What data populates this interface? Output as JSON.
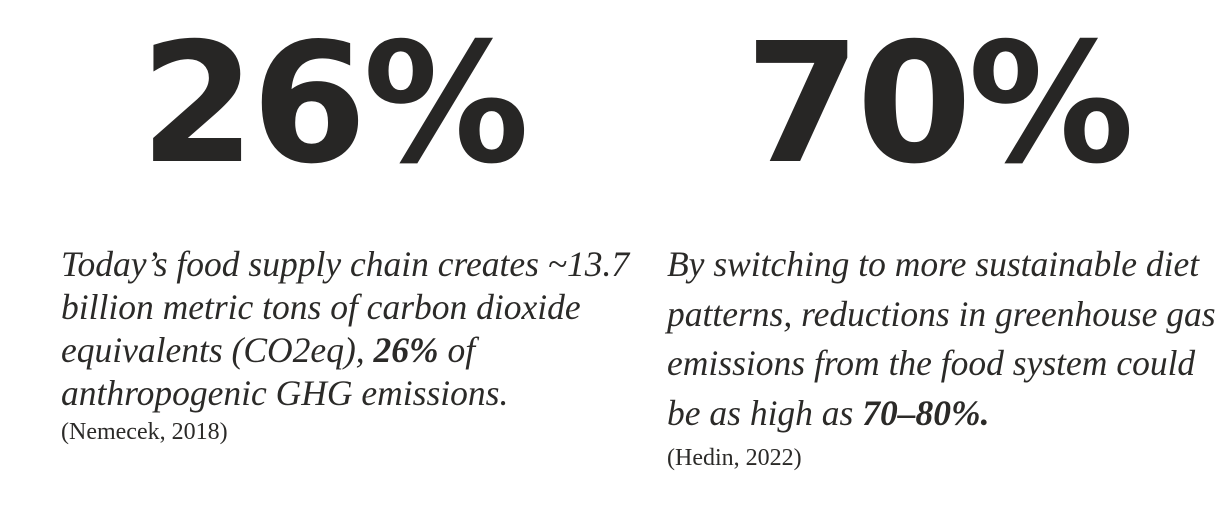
{
  "stats": [
    {
      "number": "26%",
      "text_before": "Today’s food supply chain creates ~13.7 billion metric tons of carbon dioxide equivalents (CO2eq), ",
      "text_bold": "26%",
      "text_after": " of anthropogenic GHG emissions.",
      "citation": "(Nemecek, 2018)"
    },
    {
      "number": "70%",
      "text_before": "By switching to more sustainable diet patterns, reductions in greenhouse gas emissions from the food system could be as high as ",
      "text_bold": "70–80%.",
      "text_after": "",
      "citation": "(Hedin, 2022)"
    }
  ]
}
